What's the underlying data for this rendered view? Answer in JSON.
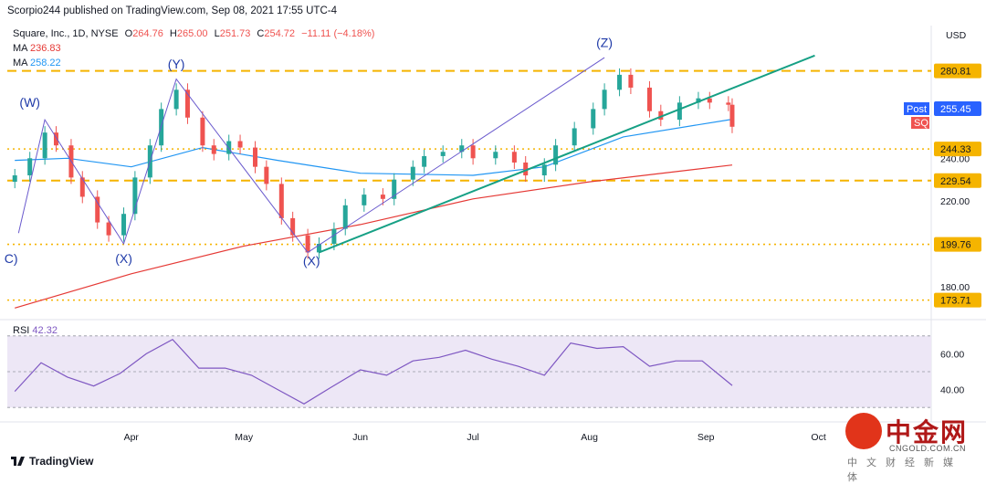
{
  "header": {
    "publisher": "Scorpio244 published on TradingView.com, Sep 08, 2021 17:55 UTC-4"
  },
  "legend": {
    "symbol": "Square, Inc., 1D, NYSE",
    "ohlc": {
      "o_label": "O",
      "o": "264.76",
      "h_label": "H",
      "h": "265.00",
      "l_label": "L",
      "l": "251.73",
      "c_label": "C",
      "c": "254.72",
      "change": "−11.11 (−4.18%)"
    },
    "ma1": {
      "label": "MA",
      "value": "236.83",
      "color": "#e53935"
    },
    "ma2": {
      "label": "MA",
      "value": "258.22",
      "color": "#2196f3"
    },
    "rsi": {
      "label": "RSI",
      "value": "42.32",
      "color": "#7e57c2"
    }
  },
  "currency": "USD",
  "footer": {
    "brand": "TradingView"
  },
  "watermark": {
    "name": "中金网",
    "url": "CNGOLD.COM.CN",
    "tagline": "中文财经新媒体"
  },
  "colors": {
    "up": "#26a69a",
    "down": "#ef5350",
    "level": "#f5b400",
    "trend": "#16a085",
    "channel": "#6a5acd",
    "rsi_bg": "#ede7f6"
  },
  "chart_data": {
    "type": "candlestick",
    "x_ticks": [
      "Apr",
      "May",
      "Jun",
      "Jul",
      "Aug",
      "Sep",
      "Oct"
    ],
    "y_ticks": [
      180,
      200,
      220,
      240
    ],
    "y_tick_labels": [
      "180.00",
      "200.00",
      "220.00",
      "240.00"
    ],
    "ylim": [
      168,
      302
    ],
    "horizontal_levels": [
      {
        "value": 280.81,
        "label": "280.81",
        "style": "dashed"
      },
      {
        "value": 244.33,
        "label": "244.33",
        "style": "dotted"
      },
      {
        "value": 229.54,
        "label": "229.54",
        "style": "dashed"
      },
      {
        "value": 199.76,
        "label": "199.76",
        "style": "dotted"
      },
      {
        "value": 173.71,
        "label": "173.71",
        "style": "dotted"
      }
    ],
    "last_price": {
      "label_top": "Post",
      "value": "255.45",
      "symbol": "SQ"
    },
    "wave_labels": [
      "(W)",
      "(X)",
      "(Y)",
      "(X)",
      "(Z)",
      "C)"
    ],
    "close_series": [
      {
        "d": "2021-03-01",
        "c": 232
      },
      {
        "d": "2021-03-05",
        "c": 240
      },
      {
        "d": "2021-03-09",
        "c": 252
      },
      {
        "d": "2021-03-12",
        "c": 246
      },
      {
        "d": "2021-03-16",
        "c": 231
      },
      {
        "d": "2021-03-19",
        "c": 222
      },
      {
        "d": "2021-03-23",
        "c": 210
      },
      {
        "d": "2021-03-26",
        "c": 204
      },
      {
        "d": "2021-03-30",
        "c": 214
      },
      {
        "d": "2021-04-02",
        "c": 231
      },
      {
        "d": "2021-04-06",
        "c": 246
      },
      {
        "d": "2021-04-09",
        "c": 263
      },
      {
        "d": "2021-04-13",
        "c": 272
      },
      {
        "d": "2021-04-16",
        "c": 259
      },
      {
        "d": "2021-04-20",
        "c": 246
      },
      {
        "d": "2021-04-23",
        "c": 242
      },
      {
        "d": "2021-04-27",
        "c": 248
      },
      {
        "d": "2021-04-30",
        "c": 245
      },
      {
        "d": "2021-05-04",
        "c": 236
      },
      {
        "d": "2021-05-07",
        "c": 228
      },
      {
        "d": "2021-05-11",
        "c": 212
      },
      {
        "d": "2021-05-14",
        "c": 204
      },
      {
        "d": "2021-05-18",
        "c": 196
      },
      {
        "d": "2021-05-21",
        "c": 200
      },
      {
        "d": "2021-05-25",
        "c": 207
      },
      {
        "d": "2021-05-28",
        "c": 218
      },
      {
        "d": "2021-06-02",
        "c": 223
      },
      {
        "d": "2021-06-07",
        "c": 221
      },
      {
        "d": "2021-06-10",
        "c": 230
      },
      {
        "d": "2021-06-15",
        "c": 236
      },
      {
        "d": "2021-06-18",
        "c": 241
      },
      {
        "d": "2021-06-23",
        "c": 243
      },
      {
        "d": "2021-06-28",
        "c": 246
      },
      {
        "d": "2021-07-01",
        "c": 240
      },
      {
        "d": "2021-07-07",
        "c": 243
      },
      {
        "d": "2021-07-12",
        "c": 238
      },
      {
        "d": "2021-07-15",
        "c": 232
      },
      {
        "d": "2021-07-20",
        "c": 237
      },
      {
        "d": "2021-07-23",
        "c": 246
      },
      {
        "d": "2021-07-28",
        "c": 254
      },
      {
        "d": "2021-08-02",
        "c": 263
      },
      {
        "d": "2021-08-05",
        "c": 272
      },
      {
        "d": "2021-08-09",
        "c": 279
      },
      {
        "d": "2021-08-12",
        "c": 273
      },
      {
        "d": "2021-08-17",
        "c": 262
      },
      {
        "d": "2021-08-20",
        "c": 258
      },
      {
        "d": "2021-08-25",
        "c": 266
      },
      {
        "d": "2021-08-30",
        "c": 268
      },
      {
        "d": "2021-09-02",
        "c": 266
      },
      {
        "d": "2021-09-07",
        "c": 265
      },
      {
        "d": "2021-09-08",
        "c": 254.72
      }
    ],
    "ma1_series": [
      {
        "d": "2021-03-01",
        "v": 170
      },
      {
        "d": "2021-04-01",
        "v": 186
      },
      {
        "d": "2021-05-01",
        "v": 199
      },
      {
        "d": "2021-06-01",
        "v": 209
      },
      {
        "d": "2021-07-01",
        "v": 221
      },
      {
        "d": "2021-08-01",
        "v": 229
      },
      {
        "d": "2021-09-08",
        "v": 236.83
      }
    ],
    "ma2_series": [
      {
        "d": "2021-03-01",
        "v": 239
      },
      {
        "d": "2021-03-15",
        "v": 240
      },
      {
        "d": "2021-04-01",
        "v": 236
      },
      {
        "d": "2021-04-20",
        "v": 245
      },
      {
        "d": "2021-05-10",
        "v": 239
      },
      {
        "d": "2021-06-01",
        "v": 233
      },
      {
        "d": "2021-07-01",
        "v": 232
      },
      {
        "d": "2021-07-20",
        "v": 236
      },
      {
        "d": "2021-08-10",
        "v": 250
      },
      {
        "d": "2021-09-08",
        "v": 258.22
      }
    ],
    "rsi_ticks": [
      40,
      60
    ],
    "rsi_tick_labels": [
      "40.00",
      "60.00"
    ],
    "rsi_levels": [
      70,
      50,
      30
    ],
    "rsi_series": [
      {
        "d": "2021-03-01",
        "v": 39
      },
      {
        "d": "2021-03-08",
        "v": 55
      },
      {
        "d": "2021-03-15",
        "v": 47
      },
      {
        "d": "2021-03-22",
        "v": 42
      },
      {
        "d": "2021-03-29",
        "v": 49
      },
      {
        "d": "2021-04-05",
        "v": 60
      },
      {
        "d": "2021-04-12",
        "v": 68
      },
      {
        "d": "2021-04-19",
        "v": 52
      },
      {
        "d": "2021-04-26",
        "v": 52
      },
      {
        "d": "2021-05-03",
        "v": 48
      },
      {
        "d": "2021-05-10",
        "v": 40
      },
      {
        "d": "2021-05-17",
        "v": 32
      },
      {
        "d": "2021-05-24",
        "v": 41
      },
      {
        "d": "2021-06-01",
        "v": 51
      },
      {
        "d": "2021-06-08",
        "v": 48
      },
      {
        "d": "2021-06-15",
        "v": 56
      },
      {
        "d": "2021-06-22",
        "v": 58
      },
      {
        "d": "2021-06-29",
        "v": 62
      },
      {
        "d": "2021-07-06",
        "v": 57
      },
      {
        "d": "2021-07-13",
        "v": 53
      },
      {
        "d": "2021-07-20",
        "v": 48
      },
      {
        "d": "2021-07-27",
        "v": 66
      },
      {
        "d": "2021-08-03",
        "v": 63
      },
      {
        "d": "2021-08-10",
        "v": 64
      },
      {
        "d": "2021-08-17",
        "v": 53
      },
      {
        "d": "2021-08-24",
        "v": 56
      },
      {
        "d": "2021-08-31",
        "v": 56
      },
      {
        "d": "2021-09-08",
        "v": 42.32
      }
    ]
  }
}
